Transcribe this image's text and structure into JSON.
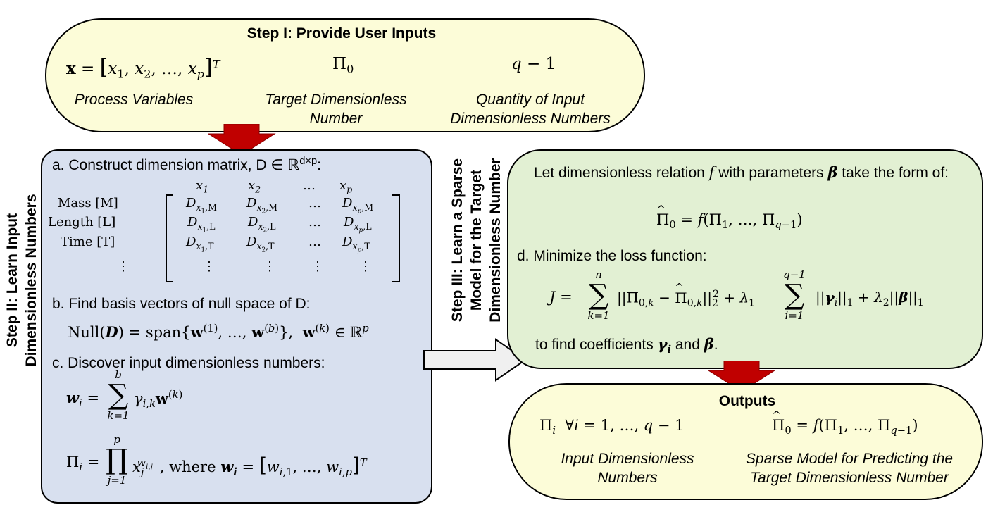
{
  "step1": {
    "title": "Step I: Provide User Inputs",
    "x_expr": "x = [x₁, x₂, …, xₚ]ᵀ",
    "pi0": "Π₀",
    "q_expr": "q − 1",
    "label_process": "Process Variables",
    "label_target": "Target Dimensionless Number",
    "label_quantity": "Quantity of Input Dimensionless Numbers"
  },
  "step2": {
    "side_label": "Step II: Learn Input Dimensionless Numbers",
    "a_text": "a. Construct dimension matrix, D ∈ ℝ",
    "a_sup": "d×p",
    "a_colon": ":",
    "col_headers": [
      "x₁",
      "x₂",
      "…",
      "xₚ"
    ],
    "row_labels": [
      "Mass [M]",
      "Length [L]",
      "Time [T]",
      "⋮"
    ],
    "matrix": [
      [
        "D_{x₁,M}",
        "D_{x₂,M}",
        "…",
        "D_{xₚ,M}"
      ],
      [
        "D_{x₁,L}",
        "D_{x₂,L}",
        "…",
        "D_{xₚ,L}"
      ],
      [
        "D_{x₁,T}",
        "D_{x₂,T}",
        "…",
        "D_{xₚ,T}"
      ],
      [
        "⋮",
        "⋮",
        "⋮",
        "⋮"
      ]
    ],
    "b_text": "b. Find basis vectors of null space of D:",
    "b_eq": "Null(D) = span{w⁽¹⁾, …, w⁽ᵇ⁾},  w⁽ᵏ⁾ ∈ ℝᵖ",
    "c_text": "c. Discover input dimensionless numbers:",
    "c_eq1": "wᵢ = Σ γᵢ,ₖ w⁽ᵏ⁾",
    "c_eq1_upper": "b",
    "c_eq1_lower": "k=1",
    "c_eq2": "Πᵢ = Π xⱼ^(wᵢ,ⱼ), where wᵢ = [wᵢ,₁, …, wᵢ,ₚ]ᵀ",
    "c_eq2_upper": "p",
    "c_eq2_lower": "j=1"
  },
  "step3": {
    "side_label_1": "Step III: Learn a Sparse",
    "side_label_2": "Model for the Target",
    "side_label_3": "Dimensionless Number",
    "intro": "Let dimensionless relation f with parameters β take the form of:",
    "model_eq": "Π̂₀ = f(Π₁, …, Π_{q−1})",
    "d_text": "d. Minimize the loss function:",
    "loss_eq": "J = Σ ||Π₀,ₖ − Π̂₀,ₖ||₂² + λ₁ Σ ||γᵢ||₁ + λ₂||β||₁",
    "loss_upper1": "n",
    "loss_lower1": "k=1",
    "loss_upper2": "q−1",
    "loss_lower2": "i=1",
    "find_text": "to find coefficients γᵢ and β."
  },
  "outputs": {
    "title": "Outputs",
    "pi_i": "Πᵢ  ∀i = 1, …, q − 1",
    "model": "Π̂₀ = f(Π₁, …, Π_{q−1})",
    "label_input": "Input Dimensionless Numbers",
    "label_model": "Sparse Model for Predicting the Target Dimensionless Number"
  },
  "colors": {
    "yellow": "#fcfcd8",
    "blue": "#d8e0ef",
    "green": "#e2f0d3",
    "red_arrow": "#c00000",
    "gray_arrow": "#f0f0f0"
  }
}
